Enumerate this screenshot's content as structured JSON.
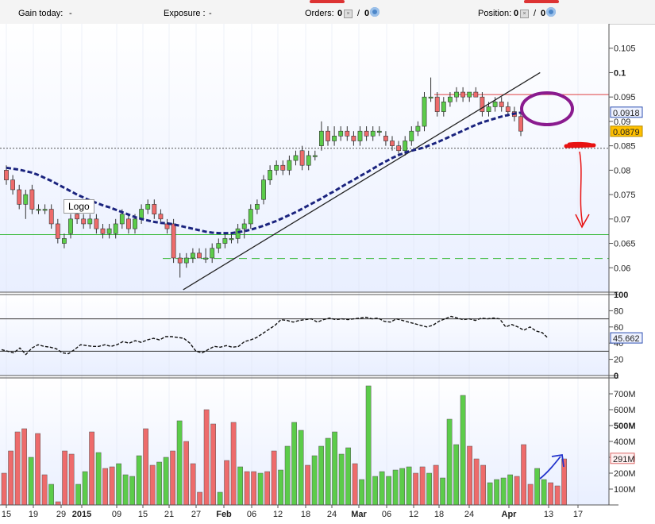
{
  "toolbar": {
    "gain_label": "Gain today:",
    "gain_value": "-",
    "exposure_label": "Exposure :",
    "exposure_value": "-",
    "orders_label": "Orders:",
    "orders_a": "0",
    "orders_sep": "/",
    "orders_b": "0",
    "position_label": "Position:",
    "position_a": "0",
    "position_sep": "/",
    "position_b": "0",
    "gear_icon": "gear-icon",
    "remove_icon": "remove-icon"
  },
  "logo_text": "Logo",
  "colors": {
    "up": "#5ccc4a",
    "down": "#ee6b6b",
    "ma": "#1a237e",
    "annotation_purple": "#8a1b8f",
    "annotation_red": "#e81212",
    "annotation_blue": "#2233cc",
    "last_price_bg": "#ffc000",
    "ma_box": "#2c4fb0"
  },
  "chart_data": [
    {
      "type": "candlestick",
      "ylim": [
        0.055,
        0.11
      ],
      "yticks": [
        "0.06",
        "0.065",
        "0.07",
        "0.075",
        "0.08",
        "0.085",
        "0.09",
        "0.095",
        "0.1",
        "0.105"
      ],
      "yticks_bold": [
        "0.1"
      ],
      "price_labels": {
        "ma_value": "0.0918",
        "last": "0.0879"
      },
      "xlabels": [
        "15",
        "19",
        "29",
        "2015",
        "09",
        "15",
        "21",
        "27",
        "Feb",
        "06",
        "12",
        "18",
        "24",
        "Mar",
        "06",
        "12",
        "18",
        "24",
        "Apr",
        "13",
        "17"
      ],
      "xlabels_bold": [
        "2015",
        "Feb",
        "Mar",
        "Apr"
      ],
      "candles": [
        [
          0.08,
          0.081,
          0.077,
          0.078
        ],
        [
          0.078,
          0.079,
          0.075,
          0.076
        ],
        [
          0.076,
          0.077,
          0.072,
          0.073
        ],
        [
          0.073,
          0.076,
          0.07,
          0.075
        ],
        [
          0.076,
          0.077,
          0.071,
          0.072
        ],
        [
          0.072,
          0.073,
          0.071,
          0.072
        ],
        [
          0.072,
          0.073,
          0.071,
          0.072
        ],
        [
          0.072,
          0.073,
          0.068,
          0.069
        ],
        [
          0.069,
          0.07,
          0.065,
          0.066
        ],
        [
          0.065,
          0.067,
          0.064,
          0.066
        ],
        [
          0.067,
          0.071,
          0.066,
          0.07
        ],
        [
          0.071,
          0.072,
          0.069,
          0.07
        ],
        [
          0.07,
          0.071,
          0.068,
          0.069
        ],
        [
          0.069,
          0.071,
          0.068,
          0.07
        ],
        [
          0.07,
          0.071,
          0.067,
          0.068
        ],
        [
          0.068,
          0.069,
          0.066,
          0.067
        ],
        [
          0.067,
          0.069,
          0.066,
          0.068
        ],
        [
          0.067,
          0.07,
          0.066,
          0.069
        ],
        [
          0.069,
          0.072,
          0.068,
          0.071
        ],
        [
          0.07,
          0.071,
          0.067,
          0.068
        ],
        [
          0.068,
          0.071,
          0.067,
          0.07
        ],
        [
          0.07,
          0.073,
          0.069,
          0.072
        ],
        [
          0.072,
          0.074,
          0.071,
          0.073
        ],
        [
          0.073,
          0.074,
          0.07,
          0.071
        ],
        [
          0.071,
          0.072,
          0.069,
          0.07
        ],
        [
          0.069,
          0.07,
          0.067,
          0.068
        ],
        [
          0.069,
          0.07,
          0.061,
          0.062
        ],
        [
          0.062,
          0.063,
          0.058,
          0.061
        ],
        [
          0.061,
          0.063,
          0.06,
          0.062
        ],
        [
          0.062,
          0.064,
          0.061,
          0.063
        ],
        [
          0.063,
          0.064,
          0.062,
          0.062
        ],
        [
          0.062,
          0.064,
          0.061,
          0.062
        ],
        [
          0.062,
          0.065,
          0.061,
          0.064
        ],
        [
          0.064,
          0.066,
          0.063,
          0.065
        ],
        [
          0.065,
          0.067,
          0.064,
          0.066
        ],
        [
          0.066,
          0.067,
          0.065,
          0.066
        ],
        [
          0.066,
          0.069,
          0.065,
          0.068
        ],
        [
          0.068,
          0.07,
          0.066,
          0.069
        ],
        [
          0.069,
          0.073,
          0.068,
          0.072
        ],
        [
          0.072,
          0.074,
          0.071,
          0.073
        ],
        [
          0.074,
          0.079,
          0.073,
          0.078
        ],
        [
          0.078,
          0.081,
          0.077,
          0.08
        ],
        [
          0.08,
          0.082,
          0.079,
          0.081
        ],
        [
          0.081,
          0.082,
          0.079,
          0.08
        ],
        [
          0.08,
          0.083,
          0.079,
          0.082
        ],
        [
          0.082,
          0.084,
          0.081,
          0.083
        ],
        [
          0.084,
          0.085,
          0.08,
          0.081
        ],
        [
          0.081,
          0.084,
          0.08,
          0.083
        ],
        [
          0.083,
          0.084,
          0.082,
          0.083
        ],
        [
          0.085,
          0.09,
          0.084,
          0.088
        ],
        [
          0.088,
          0.089,
          0.085,
          0.086
        ],
        [
          0.086,
          0.089,
          0.085,
          0.087
        ],
        [
          0.087,
          0.089,
          0.086,
          0.088
        ],
        [
          0.088,
          0.089,
          0.086,
          0.087
        ],
        [
          0.087,
          0.088,
          0.085,
          0.086
        ],
        [
          0.086,
          0.089,
          0.085,
          0.088
        ],
        [
          0.088,
          0.089,
          0.086,
          0.087
        ],
        [
          0.087,
          0.089,
          0.086,
          0.088
        ],
        [
          0.088,
          0.089,
          0.087,
          0.088
        ],
        [
          0.087,
          0.088,
          0.085,
          0.086
        ],
        [
          0.086,
          0.087,
          0.084,
          0.085
        ],
        [
          0.085,
          0.086,
          0.083,
          0.084
        ],
        [
          0.084,
          0.087,
          0.083,
          0.086
        ],
        [
          0.086,
          0.089,
          0.085,
          0.088
        ],
        [
          0.088,
          0.09,
          0.087,
          0.089
        ],
        [
          0.089,
          0.096,
          0.088,
          0.095
        ],
        [
          0.095,
          0.099,
          0.094,
          0.095
        ],
        [
          0.095,
          0.096,
          0.091,
          0.092
        ],
        [
          0.092,
          0.095,
          0.091,
          0.094
        ],
        [
          0.094,
          0.096,
          0.093,
          0.095
        ],
        [
          0.095,
          0.097,
          0.094,
          0.096
        ],
        [
          0.096,
          0.097,
          0.094,
          0.095
        ],
        [
          0.095,
          0.096,
          0.094,
          0.096
        ],
        [
          0.096,
          0.097,
          0.095,
          0.095
        ],
        [
          0.095,
          0.096,
          0.091,
          0.092
        ],
        [
          0.092,
          0.094,
          0.091,
          0.093
        ],
        [
          0.093,
          0.095,
          0.092,
          0.094
        ],
        [
          0.094,
          0.095,
          0.092,
          0.093
        ],
        [
          0.093,
          0.094,
          0.091,
          0.092
        ],
        [
          0.092,
          0.093,
          0.09,
          0.091
        ],
        [
          0.091,
          0.092,
          0.087,
          0.088
        ]
      ],
      "ma_values": [
        0.0805,
        0.0803,
        0.0801,
        0.0798,
        0.0795,
        0.079,
        0.0784,
        0.0778,
        0.0771,
        0.0764,
        0.0757,
        0.075,
        0.0744,
        0.0738,
        0.0733,
        0.0728,
        0.0724,
        0.0719,
        0.0714,
        0.0709,
        0.0704,
        0.07,
        0.0697,
        0.0694,
        0.0692,
        0.0691,
        0.0689,
        0.0686,
        0.0683,
        0.068,
        0.0677,
        0.0674,
        0.0672,
        0.0671,
        0.0671,
        0.0671,
        0.0673,
        0.0675,
        0.0678,
        0.0682,
        0.0686,
        0.0691,
        0.0696,
        0.0702,
        0.0708,
        0.0714,
        0.0721,
        0.0728,
        0.0735,
        0.0742,
        0.075,
        0.0757,
        0.0765,
        0.0773,
        0.078,
        0.0788,
        0.0795,
        0.0803,
        0.0811,
        0.0818,
        0.0825,
        0.0831,
        0.0836,
        0.084,
        0.0843,
        0.0847,
        0.0852,
        0.0857,
        0.0863,
        0.0869,
        0.0875,
        0.0881,
        0.0887,
        0.0893,
        0.0898,
        0.0902,
        0.0906,
        0.091,
        0.0913,
        0.0916,
        0.0918
      ],
      "horizontal_lines": [
        {
          "value": 0.0845,
          "style": "dotted",
          "color": "#555555"
        },
        {
          "value": 0.0955,
          "style": "solid",
          "color": "#e04040"
        },
        {
          "value": 0.0668,
          "style": "solid",
          "color": "#3cba3c"
        },
        {
          "value": 0.0619,
          "style": "dashed",
          "color": "#3cba3c"
        }
      ],
      "trendline": {
        "from": [
          27.5,
          0.0555
        ],
        "to": [
          83.0,
          0.1
        ],
        "color": "#222222"
      }
    },
    {
      "type": "line",
      "name": "oscillator",
      "ylim": [
        0,
        100
      ],
      "yticks": [
        "0",
        "20",
        "40",
        "60",
        "80",
        "100"
      ],
      "yticks_bold": [
        "0",
        "100"
      ],
      "bands": [
        30,
        70
      ],
      "last_label": "45.662",
      "values": [
        32,
        30,
        28,
        34,
        26,
        34,
        38,
        36,
        35,
        33,
        28,
        27,
        32,
        38,
        37,
        36,
        36,
        38,
        36,
        38,
        42,
        40,
        43,
        41,
        44,
        46,
        44,
        48,
        48,
        47,
        46,
        40,
        30,
        28,
        32,
        36,
        35,
        37,
        35,
        36,
        42,
        44,
        47,
        52,
        57,
        62,
        69,
        68,
        66,
        68,
        69,
        70,
        66,
        69,
        71,
        69,
        70,
        69,
        70,
        71,
        72,
        70,
        71,
        67,
        66,
        70,
        68,
        66,
        64,
        62,
        60,
        62,
        67,
        70,
        73,
        71,
        69,
        70,
        68,
        71,
        70,
        71,
        70,
        60,
        63,
        60,
        56,
        60,
        55,
        53,
        46
      ]
    },
    {
      "type": "bar",
      "name": "volume",
      "ylim": [
        0,
        800
      ],
      "yticks": [
        "100M",
        "200M",
        "300M",
        "400M",
        "500M",
        "600M",
        "700M"
      ],
      "yticks_bold": [
        "500M"
      ],
      "last_label": "291M",
      "bars": [
        [
          200,
          "d"
        ],
        [
          340,
          "d"
        ],
        [
          460,
          "d"
        ],
        [
          480,
          "d"
        ],
        [
          300,
          "g"
        ],
        [
          450,
          "d"
        ],
        [
          190,
          "d"
        ],
        [
          130,
          "g"
        ],
        [
          20,
          "d"
        ],
        [
          340,
          "d"
        ],
        [
          320,
          "d"
        ],
        [
          130,
          "g"
        ],
        [
          210,
          "g"
        ],
        [
          460,
          "d"
        ],
        [
          330,
          "g"
        ],
        [
          230,
          "d"
        ],
        [
          240,
          "d"
        ],
        [
          260,
          "g"
        ],
        [
          190,
          "g"
        ],
        [
          180,
          "g"
        ],
        [
          310,
          "g"
        ],
        [
          480,
          "d"
        ],
        [
          250,
          "d"
        ],
        [
          270,
          "g"
        ],
        [
          300,
          "g"
        ],
        [
          340,
          "d"
        ],
        [
          530,
          "g"
        ],
        [
          400,
          "d"
        ],
        [
          260,
          "d"
        ],
        [
          80,
          "d"
        ],
        [
          600,
          "d"
        ],
        [
          510,
          "d"
        ],
        [
          80,
          "g"
        ],
        [
          280,
          "d"
        ],
        [
          520,
          "d"
        ],
        [
          240,
          "g"
        ],
        [
          210,
          "d"
        ],
        [
          210,
          "d"
        ],
        [
          200,
          "g"
        ],
        [
          210,
          "d"
        ],
        [
          340,
          "d"
        ],
        [
          220,
          "g"
        ],
        [
          370,
          "g"
        ],
        [
          520,
          "g"
        ],
        [
          470,
          "g"
        ],
        [
          250,
          "d"
        ],
        [
          310,
          "g"
        ],
        [
          370,
          "g"
        ],
        [
          420,
          "g"
        ],
        [
          460,
          "g"
        ],
        [
          320,
          "g"
        ],
        [
          360,
          "g"
        ],
        [
          260,
          "d"
        ],
        [
          160,
          "g"
        ],
        [
          750,
          "g"
        ],
        [
          180,
          "g"
        ],
        [
          210,
          "g"
        ],
        [
          180,
          "g"
        ],
        [
          220,
          "g"
        ],
        [
          230,
          "g"
        ],
        [
          240,
          "g"
        ],
        [
          200,
          "d"
        ],
        [
          240,
          "d"
        ],
        [
          200,
          "g"
        ],
        [
          250,
          "d"
        ],
        [
          170,
          "g"
        ],
        [
          540,
          "g"
        ],
        [
          380,
          "g"
        ],
        [
          690,
          "g"
        ],
        [
          370,
          "d"
        ],
        [
          290,
          "d"
        ],
        [
          250,
          "d"
        ],
        [
          140,
          "g"
        ],
        [
          160,
          "g"
        ],
        [
          170,
          "g"
        ],
        [
          190,
          "g"
        ],
        [
          180,
          "d"
        ],
        [
          380,
          "d"
        ],
        [
          130,
          "d"
        ],
        [
          230,
          "g"
        ],
        [
          160,
          "g"
        ],
        [
          140,
          "d"
        ],
        [
          120,
          "d"
        ],
        [
          290,
          "d"
        ]
      ]
    }
  ]
}
